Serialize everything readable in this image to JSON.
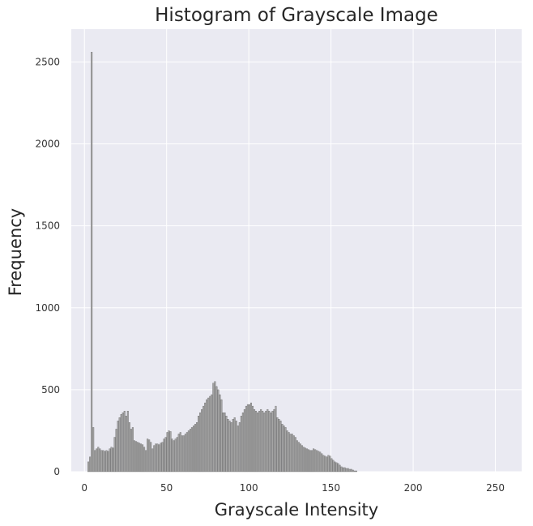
{
  "chart_data": {
    "type": "bar",
    "title": "Histogram of Grayscale Image",
    "xlabel": "Grayscale Intensity",
    "ylabel": "Frequency",
    "xlim": [
      -8,
      266
    ],
    "ylim": [
      0,
      2700
    ],
    "xticks": [
      0,
      50,
      100,
      150,
      200,
      250
    ],
    "yticks": [
      0,
      500,
      1000,
      1500,
      2000,
      2500
    ],
    "grid": true,
    "colors": {
      "plot_bg": "#eaeaf2",
      "grid": "#ffffff",
      "bar": "#a6a6a6",
      "bar_edge": "#6e6e6e"
    },
    "bin_start": 0,
    "bin_width": 1,
    "values": [
      0,
      0,
      60,
      90,
      2560,
      270,
      130,
      140,
      150,
      140,
      130,
      130,
      125,
      130,
      125,
      140,
      150,
      145,
      210,
      260,
      310,
      330,
      350,
      360,
      370,
      340,
      370,
      300,
      260,
      270,
      190,
      185,
      180,
      175,
      170,
      165,
      150,
      130,
      200,
      195,
      180,
      140,
      160,
      170,
      170,
      165,
      175,
      180,
      200,
      210,
      240,
      250,
      245,
      200,
      190,
      200,
      210,
      230,
      240,
      220,
      220,
      230,
      240,
      250,
      260,
      270,
      280,
      290,
      300,
      340,
      360,
      380,
      400,
      420,
      440,
      450,
      460,
      470,
      540,
      550,
      520,
      500,
      470,
      440,
      360,
      360,
      340,
      320,
      310,
      300,
      320,
      330,
      310,
      280,
      300,
      340,
      360,
      380,
      400,
      410,
      410,
      420,
      400,
      380,
      370,
      360,
      370,
      380,
      370,
      360,
      370,
      380,
      370,
      360,
      370,
      380,
      400,
      330,
      320,
      310,
      290,
      280,
      270,
      250,
      240,
      230,
      230,
      220,
      210,
      190,
      180,
      170,
      160,
      150,
      145,
      140,
      135,
      130,
      130,
      140,
      135,
      130,
      125,
      120,
      110,
      100,
      95,
      90,
      100,
      95,
      80,
      70,
      60,
      55,
      50,
      40,
      30,
      25,
      25,
      20,
      20,
      15,
      15,
      10,
      5,
      5
    ],
    "value_offset": 0
  }
}
